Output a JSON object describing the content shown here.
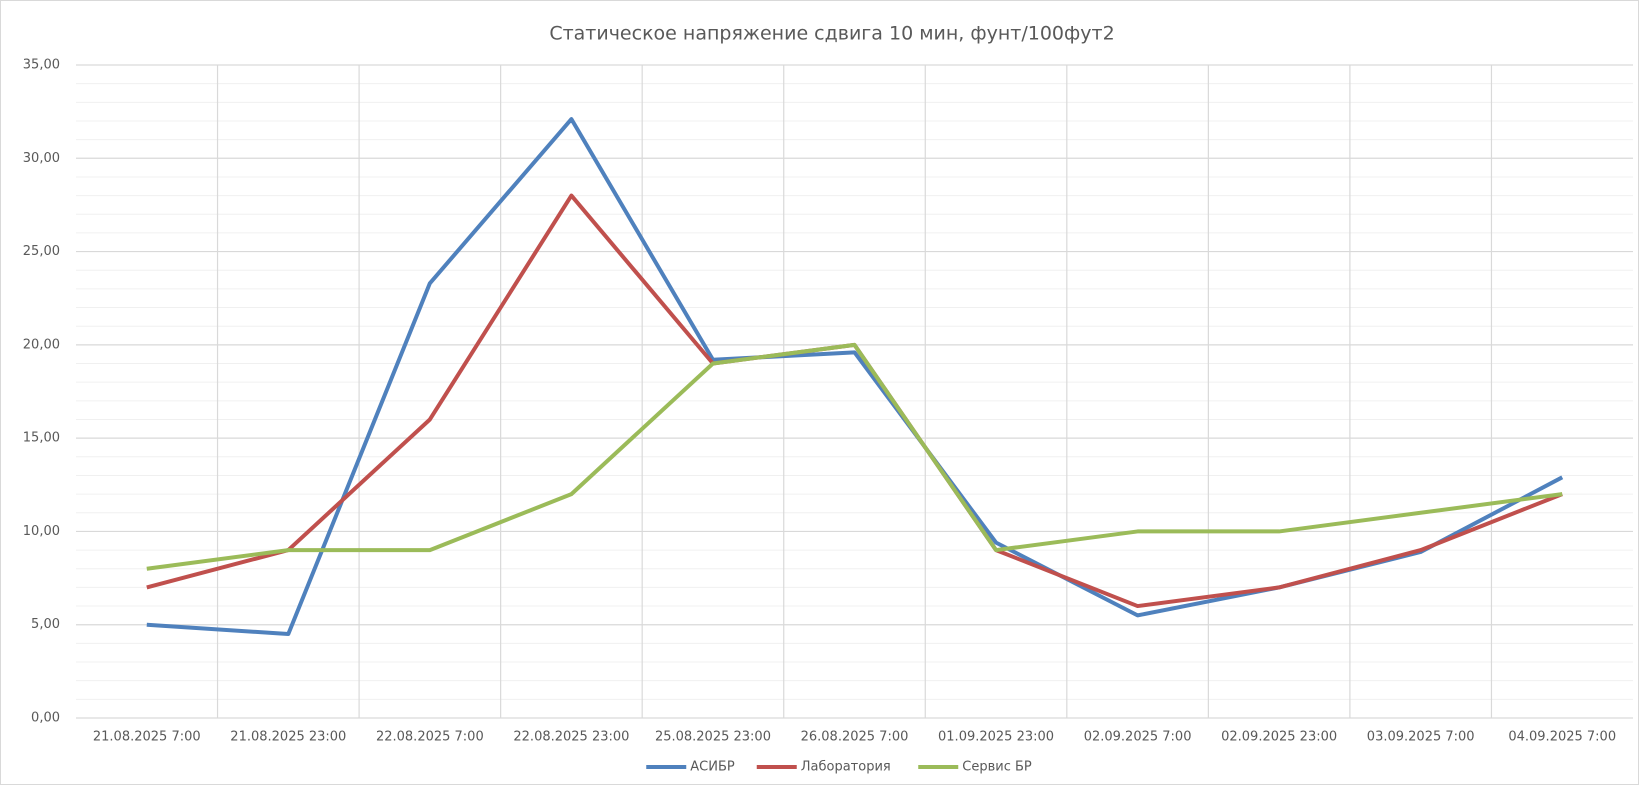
{
  "chart_data": {
    "type": "line",
    "title": "Статическое напряжение сдвига 10 мин, фунт/100фут2",
    "categories": [
      "21.08.2025 7:00",
      "21.08.2025 23:00",
      "22.08.2025 7:00",
      "22.08.2025 23:00",
      "25.08.2025 23:00",
      "26.08.2025 7:00",
      "01.09.2025 23:00",
      "02.09.2025 7:00",
      "02.09.2025 23:00",
      "03.09.2025 7:00",
      "04.09.2025 7:00"
    ],
    "series": [
      {
        "name": "АСИБР",
        "color": "#4f81bd",
        "values": [
          5,
          4.5,
          23.3,
          32.1,
          19.2,
          19.6,
          9.4,
          5.5,
          7,
          8.9,
          12.9
        ]
      },
      {
        "name": "Лаборатория",
        "color": "#c0504d",
        "values": [
          7,
          9,
          16,
          28,
          19,
          20,
          9,
          6,
          7,
          9,
          12
        ]
      },
      {
        "name": "Сервис БР",
        "color": "#9bbb59",
        "values": [
          8,
          9,
          9,
          12,
          19,
          20,
          9,
          10,
          10,
          11,
          12
        ]
      }
    ],
    "ylim": [
      0,
      35
    ],
    "yticks": [
      {
        "value": 0,
        "label": "0,00"
      },
      {
        "value": 5,
        "label": "5,00"
      },
      {
        "value": 10,
        "label": "10,00"
      },
      {
        "value": 15,
        "label": "15,00"
      },
      {
        "value": 20,
        "label": "20,00"
      },
      {
        "value": 25,
        "label": "25,00"
      },
      {
        "value": 30,
        "label": "30,00"
      },
      {
        "value": 35,
        "label": "35,00"
      }
    ],
    "minor_yticks": [
      1,
      2,
      3,
      4,
      6,
      7,
      8,
      9,
      11,
      12,
      13,
      14,
      16,
      17,
      18,
      19,
      21,
      22,
      23,
      24,
      26,
      27,
      28,
      29,
      31,
      32,
      33,
      34
    ],
    "grid": true,
    "legend": "bottom"
  }
}
